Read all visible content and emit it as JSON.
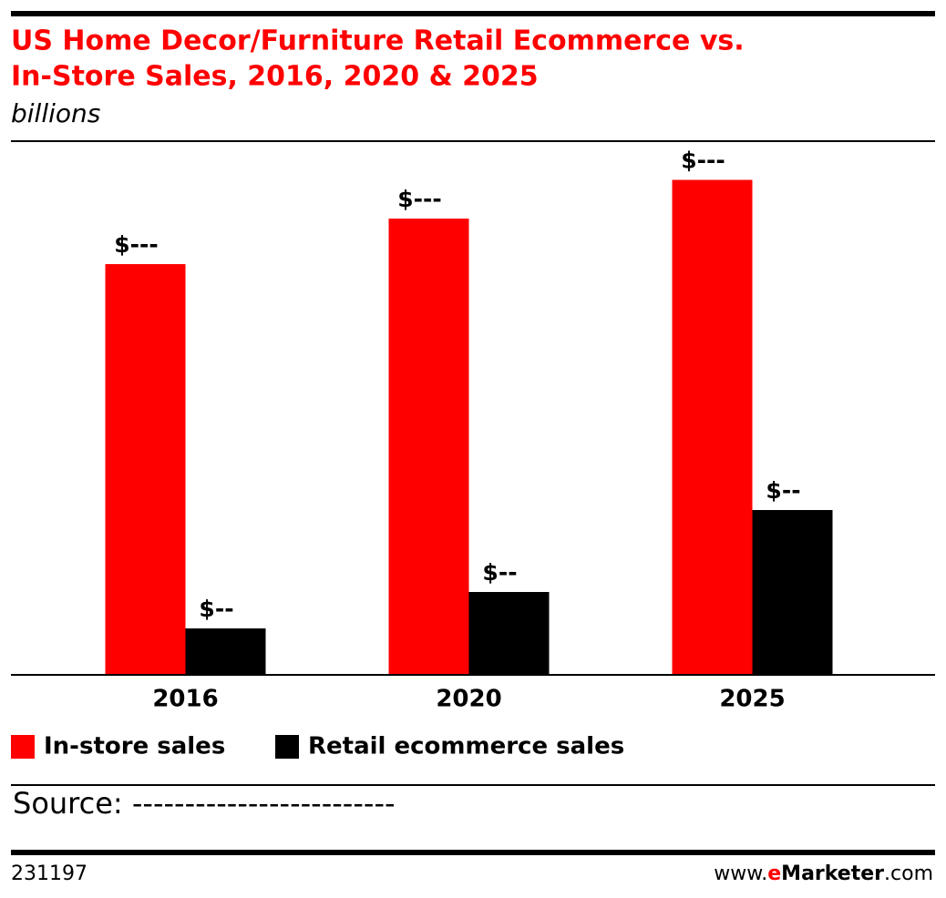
{
  "chart_data": {
    "type": "bar",
    "title": [
      "US Home Decor/Furniture Retail Ecommerce vs.",
      "In-Store Sales, 2016, 2020 & 2025"
    ],
    "subtitle": "billions",
    "categories": [
      "2016",
      "2020",
      "2025"
    ],
    "series": [
      {
        "name": "In-store sales",
        "color": "#ff0000",
        "values": [
          180,
          200,
          217
        ],
        "value_labels": [
          "$---",
          "$---",
          "$---"
        ]
      },
      {
        "name": "Retail ecommerce sales",
        "color": "#000000",
        "values": [
          20,
          36,
          72
        ],
        "value_labels": [
          "$--",
          "$--",
          "$--"
        ]
      }
    ],
    "ylim": [
      0,
      234
    ],
    "source": "Source: -------------------------",
    "chart_id": "231197",
    "brand": [
      "www.",
      "e",
      "Marketer",
      ".com"
    ]
  }
}
